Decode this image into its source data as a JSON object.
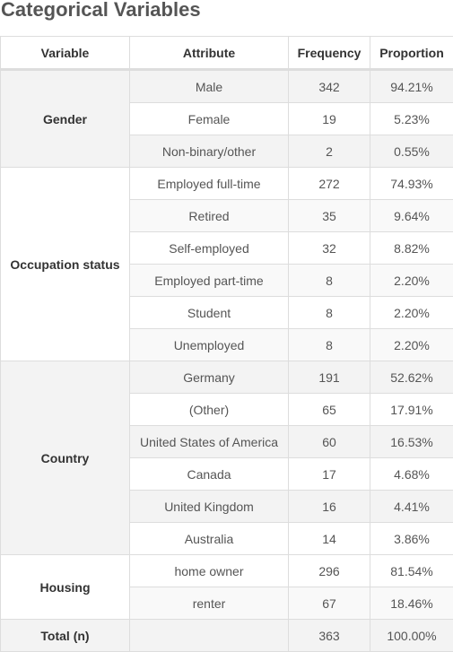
{
  "title": "Categorical Variables",
  "columns": {
    "variable": "Variable",
    "attribute": "Attribute",
    "frequency": "Frequency",
    "proportion": "Proportion"
  },
  "groups": [
    {
      "variable": "Gender",
      "rows": [
        {
          "attribute": "Male",
          "frequency": "342",
          "proportion": "94.21%"
        },
        {
          "attribute": "Female",
          "frequency": "19",
          "proportion": "5.23%"
        },
        {
          "attribute": "Non-binary/other",
          "frequency": "2",
          "proportion": "0.55%"
        }
      ]
    },
    {
      "variable": "Occupation status",
      "rows": [
        {
          "attribute": "Employed full-time",
          "frequency": "272",
          "proportion": "74.93%"
        },
        {
          "attribute": "Retired",
          "frequency": "35",
          "proportion": "9.64%"
        },
        {
          "attribute": "Self-employed",
          "frequency": "32",
          "proportion": "8.82%"
        },
        {
          "attribute": "Employed part-time",
          "frequency": "8",
          "proportion": "2.20%"
        },
        {
          "attribute": "Student",
          "frequency": "8",
          "proportion": "2.20%"
        },
        {
          "attribute": "Unemployed",
          "frequency": "8",
          "proportion": "2.20%"
        }
      ]
    },
    {
      "variable": "Country",
      "rows": [
        {
          "attribute": "Germany",
          "frequency": "191",
          "proportion": "52.62%"
        },
        {
          "attribute": "(Other)",
          "frequency": "65",
          "proportion": "17.91%"
        },
        {
          "attribute": "United States of America",
          "frequency": "60",
          "proportion": "16.53%"
        },
        {
          "attribute": "Canada",
          "frequency": "17",
          "proportion": "4.68%"
        },
        {
          "attribute": "United Kingdom",
          "frequency": "16",
          "proportion": "4.41%"
        },
        {
          "attribute": "Australia",
          "frequency": "14",
          "proportion": "3.86%"
        }
      ]
    },
    {
      "variable": "Housing",
      "rows": [
        {
          "attribute": "home owner",
          "frequency": "296",
          "proportion": "81.54%"
        },
        {
          "attribute": "renter",
          "frequency": "67",
          "proportion": "18.46%"
        }
      ]
    }
  ],
  "total": {
    "variable": "Total (n)",
    "attribute": "",
    "frequency": "363",
    "proportion": "100.00%"
  }
}
